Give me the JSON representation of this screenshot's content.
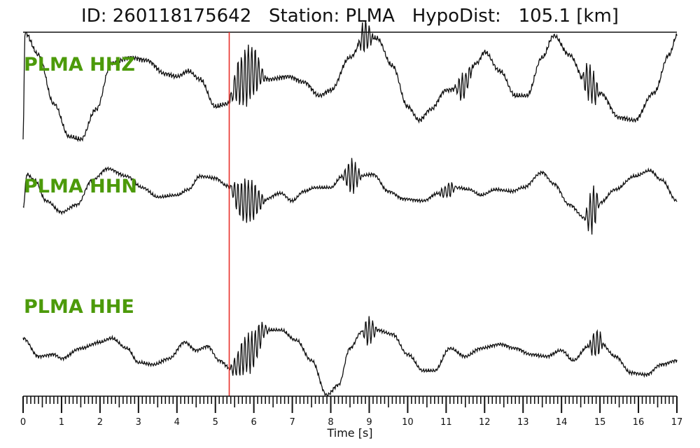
{
  "title": "ID: 260118175642   Station: PLMA   HypoDist:   105.1 [km]",
  "colors": {
    "trace": "#111111",
    "pick": "#e8302a",
    "label": "#4c9a0a"
  },
  "chart_data": {
    "type": "line",
    "xlabel": "Time [s]",
    "xlim": [
      0,
      17
    ],
    "xticks": [
      0,
      1,
      2,
      3,
      4,
      5,
      6,
      7,
      8,
      9,
      10,
      11,
      12,
      13,
      14,
      15,
      16,
      17
    ],
    "pick_time": 5.36,
    "series": [
      {
        "name": "PLMA HHZ",
        "label": "PLMA HHZ",
        "noise": [
          [
            5.35,
            6.3,
            0.55
          ],
          [
            8.7,
            9.1,
            0.3
          ],
          [
            11.2,
            11.7,
            0.25
          ],
          [
            14.5,
            15.0,
            0.35
          ]
        ],
        "points": [
          [
            0,
            -0.95
          ],
          [
            0.05,
            1.0
          ],
          [
            0.4,
            0.6
          ],
          [
            0.8,
            -0.3
          ],
          [
            1.2,
            -0.9
          ],
          [
            1.5,
            -0.95
          ],
          [
            1.9,
            -0.4
          ],
          [
            2.3,
            0.45
          ],
          [
            2.8,
            0.55
          ],
          [
            3.2,
            0.5
          ],
          [
            3.7,
            0.25
          ],
          [
            4.0,
            0.2
          ],
          [
            4.3,
            0.3
          ],
          [
            4.6,
            0.15
          ],
          [
            5.0,
            -0.35
          ],
          [
            5.3,
            -0.3
          ],
          [
            5.6,
            0.1
          ],
          [
            6.0,
            0.3
          ],
          [
            6.4,
            0.15
          ],
          [
            6.9,
            0.2
          ],
          [
            7.3,
            0.1
          ],
          [
            7.7,
            -0.15
          ],
          [
            8.0,
            -0.05
          ],
          [
            8.5,
            0.55
          ],
          [
            8.9,
            0.95
          ],
          [
            9.2,
            0.9
          ],
          [
            9.6,
            0.4
          ],
          [
            10.0,
            -0.35
          ],
          [
            10.3,
            -0.6
          ],
          [
            10.6,
            -0.4
          ],
          [
            11.0,
            -0.05
          ],
          [
            11.4,
            0.0
          ],
          [
            11.8,
            0.45
          ],
          [
            12.0,
            0.65
          ],
          [
            12.4,
            0.3
          ],
          [
            12.8,
            -0.15
          ],
          [
            13.1,
            -0.15
          ],
          [
            13.5,
            0.55
          ],
          [
            13.8,
            0.95
          ],
          [
            14.2,
            0.6
          ],
          [
            14.6,
            0.15
          ],
          [
            15.0,
            -0.1
          ],
          [
            15.5,
            -0.55
          ],
          [
            15.9,
            -0.6
          ],
          [
            16.4,
            -0.1
          ],
          [
            16.8,
            0.6
          ],
          [
            17.0,
            0.95
          ]
        ]
      },
      {
        "name": "PLMA HHN",
        "label": "PLMA HHN",
        "noise": [
          [
            5.35,
            6.3,
            0.6
          ],
          [
            8.3,
            8.8,
            0.45
          ],
          [
            10.8,
            11.3,
            0.2
          ],
          [
            14.6,
            15.0,
            0.6
          ]
        ],
        "points": [
          [
            0,
            -0.55
          ],
          [
            0.1,
            0.35
          ],
          [
            0.3,
            0.2
          ],
          [
            0.6,
            -0.35
          ],
          [
            1.0,
            -0.65
          ],
          [
            1.4,
            -0.45
          ],
          [
            1.8,
            0.2
          ],
          [
            2.2,
            0.5
          ],
          [
            2.7,
            0.3
          ],
          [
            3.1,
            0.0
          ],
          [
            3.5,
            -0.25
          ],
          [
            4.0,
            -0.2
          ],
          [
            4.3,
            -0.05
          ],
          [
            4.6,
            0.3
          ],
          [
            5.0,
            0.25
          ],
          [
            5.3,
            0.05
          ],
          [
            5.7,
            -0.35
          ],
          [
            6.2,
            -0.35
          ],
          [
            6.7,
            -0.15
          ],
          [
            7.0,
            -0.35
          ],
          [
            7.3,
            -0.1
          ],
          [
            7.6,
            0.0
          ],
          [
            8.0,
            0.0
          ],
          [
            8.3,
            0.3
          ],
          [
            8.7,
            0.3
          ],
          [
            9.1,
            0.35
          ],
          [
            9.5,
            -0.1
          ],
          [
            9.9,
            -0.3
          ],
          [
            10.4,
            -0.35
          ],
          [
            10.8,
            -0.15
          ],
          [
            11.3,
            0.0
          ],
          [
            11.6,
            -0.05
          ],
          [
            11.9,
            -0.2
          ],
          [
            12.3,
            -0.05
          ],
          [
            12.7,
            -0.1
          ],
          [
            13.0,
            0.0
          ],
          [
            13.5,
            0.4
          ],
          [
            13.8,
            0.1
          ],
          [
            14.2,
            -0.45
          ],
          [
            14.6,
            -0.8
          ],
          [
            15.0,
            -0.4
          ],
          [
            15.4,
            -0.05
          ],
          [
            15.9,
            0.3
          ],
          [
            16.3,
            0.45
          ],
          [
            16.6,
            0.2
          ],
          [
            17.0,
            -0.35
          ]
        ]
      },
      {
        "name": "PLMA HHE",
        "label": "PLMA HHE",
        "noise": [
          [
            5.35,
            6.4,
            0.5
          ],
          [
            8.8,
            9.2,
            0.35
          ],
          [
            14.7,
            15.1,
            0.35
          ]
        ],
        "points": [
          [
            0,
            0.55
          ],
          [
            0.4,
            0.1
          ],
          [
            0.8,
            0.15
          ],
          [
            1.0,
            0.05
          ],
          [
            1.5,
            0.3
          ],
          [
            2.0,
            0.45
          ],
          [
            2.3,
            0.55
          ],
          [
            2.7,
            0.3
          ],
          [
            3.0,
            -0.05
          ],
          [
            3.4,
            -0.1
          ],
          [
            3.8,
            0.05
          ],
          [
            4.2,
            0.45
          ],
          [
            4.5,
            0.25
          ],
          [
            4.8,
            0.35
          ],
          [
            5.1,
            0.0
          ],
          [
            5.4,
            -0.2
          ],
          [
            5.9,
            0.2
          ],
          [
            6.3,
            0.75
          ],
          [
            6.7,
            0.75
          ],
          [
            7.1,
            0.5
          ],
          [
            7.5,
            0.0
          ],
          [
            7.9,
            -0.85
          ],
          [
            8.2,
            -0.6
          ],
          [
            8.5,
            0.3
          ],
          [
            8.8,
            0.7
          ],
          [
            9.2,
            0.75
          ],
          [
            9.6,
            0.65
          ],
          [
            10.0,
            0.15
          ],
          [
            10.4,
            -0.25
          ],
          [
            10.7,
            -0.25
          ],
          [
            11.1,
            0.3
          ],
          [
            11.5,
            0.1
          ],
          [
            11.9,
            0.3
          ],
          [
            12.4,
            0.4
          ],
          [
            12.8,
            0.3
          ],
          [
            13.2,
            0.15
          ],
          [
            13.6,
            0.1
          ],
          [
            14.0,
            0.25
          ],
          [
            14.3,
            0.0
          ],
          [
            14.7,
            0.35
          ],
          [
            15.0,
            0.45
          ],
          [
            15.4,
            0.1
          ],
          [
            15.8,
            -0.3
          ],
          [
            16.2,
            -0.35
          ],
          [
            16.6,
            -0.1
          ],
          [
            17.0,
            0.0
          ]
        ]
      }
    ]
  }
}
